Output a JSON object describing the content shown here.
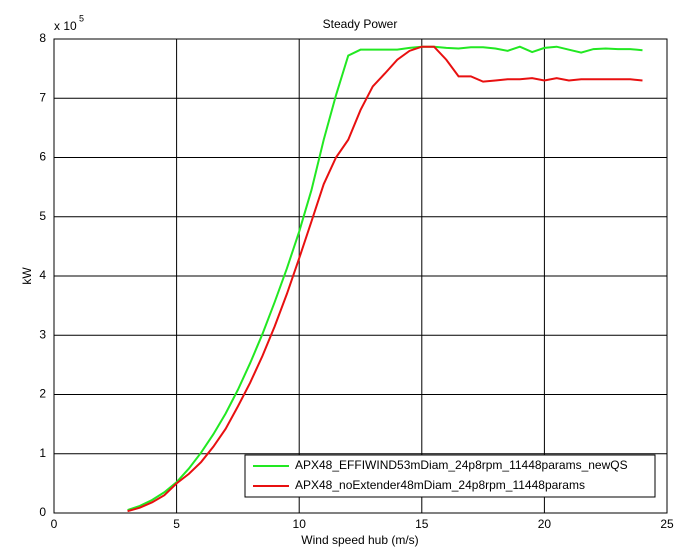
{
  "chart_data": {
    "type": "line",
    "title": "Steady Power",
    "x_label": "Wind speed hub (m/s)",
    "y_label": "kW",
    "y_multiplier_base": "x 10",
    "y_multiplier_exponent": "5",
    "x": [
      3,
      3.5,
      4,
      4.5,
      5,
      5.5,
      6,
      6.5,
      7,
      7.5,
      8,
      8.5,
      9,
      9.5,
      10,
      10.5,
      11,
      11.5,
      12,
      12.5,
      13,
      13.5,
      14,
      14.5,
      15,
      15.5,
      16,
      16.5,
      17,
      17.5,
      18,
      18.5,
      19,
      19.5,
      20,
      20.5,
      21,
      21.5,
      22,
      22.5,
      23,
      23.5,
      24
    ],
    "series": [
      {
        "name": "APX48_EFFIWIND53mDiam_24p8rpm_11448params_newQS",
        "color": "#22e822",
        "values": [
          0.05,
          0.12,
          0.22,
          0.35,
          0.52,
          0.75,
          1.02,
          1.33,
          1.68,
          2.08,
          2.53,
          3.02,
          3.56,
          4.13,
          4.75,
          5.45,
          6.3,
          7.05,
          7.72,
          7.82,
          7.82,
          7.82,
          7.82,
          7.85,
          7.87,
          7.87,
          7.85,
          7.84,
          7.86,
          7.86,
          7.84,
          7.8,
          7.87,
          7.78,
          7.85,
          7.87,
          7.82,
          7.77,
          7.83,
          7.84,
          7.83,
          7.83,
          7.81
        ]
      },
      {
        "name": "APX48_noExtender48mDiam_24p8rpm_11448params",
        "color": "#e81010",
        "values": [
          0.03,
          0.09,
          0.18,
          0.3,
          0.5,
          0.66,
          0.86,
          1.12,
          1.42,
          1.8,
          2.2,
          2.65,
          3.15,
          3.7,
          4.3,
          4.92,
          5.55,
          6.0,
          6.3,
          6.8,
          7.2,
          7.42,
          7.65,
          7.8,
          7.87,
          7.87,
          7.65,
          7.37,
          7.37,
          7.28,
          7.3,
          7.32,
          7.32,
          7.34,
          7.3,
          7.34,
          7.3,
          7.32,
          7.32,
          7.32,
          7.32,
          7.32,
          7.3
        ]
      }
    ],
    "xlim": [
      0,
      25
    ],
    "xticks": [
      0,
      5,
      10,
      15,
      20,
      25
    ],
    "ylim": [
      0,
      8
    ],
    "yticks": [
      0,
      1,
      2,
      3,
      4,
      5,
      6,
      7,
      8
    ],
    "grid": true,
    "legend_position": "lower right"
  }
}
